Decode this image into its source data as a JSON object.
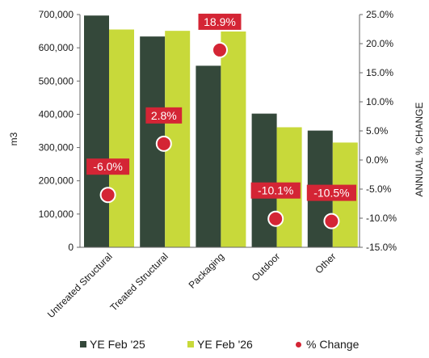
{
  "chart_data": {
    "type": "bar",
    "categories": [
      "Untreated Structural",
      "Treated Structural",
      "Packaging",
      "Outdoor",
      "Other"
    ],
    "series": [
      {
        "name": "YE Feb '25",
        "values": [
          697000,
          634000,
          546000,
          402000,
          351000
        ],
        "color": "#34483a"
      },
      {
        "name": "YE Feb '26",
        "values": [
          655000,
          651000,
          649000,
          361000,
          315000
        ],
        "color": "#c8d93a"
      }
    ],
    "line_series": {
      "name": "% Change",
      "values": [
        -6.0,
        2.8,
        18.9,
        -10.1,
        -10.5
      ],
      "labels": [
        "-6.0%",
        "2.8%",
        "18.9%",
        "-10.1%",
        "-10.5%"
      ],
      "color": "#d42535"
    },
    "ylabel": "m3",
    "y2label": "ANNUAL % CHANGE",
    "ylim": [
      0,
      700000
    ],
    "y2lim": [
      -15,
      25
    ],
    "yticks": [
      "0",
      "100,000",
      "200,000",
      "300,000",
      "400,000",
      "500,000",
      "600,000",
      "700,000"
    ],
    "y2ticks": [
      "-15.0%",
      "-10.0%",
      "-5.0%",
      "0.0%",
      "5.0%",
      "10.0%",
      "15.0%",
      "20.0%",
      "25.0%"
    ],
    "grid": false,
    "legend_position": "bottom"
  }
}
